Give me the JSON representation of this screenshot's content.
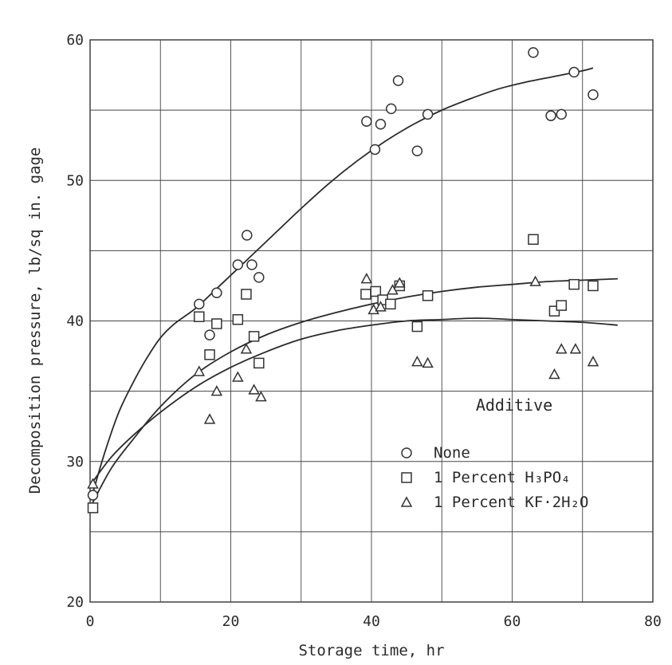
{
  "chart_data": {
    "type": "scatter",
    "xlabel": "Storage time, hr",
    "ylabel": "Decomposition pressure, lb/sq in. gage",
    "xlim": [
      0,
      80
    ],
    "ylim": [
      20,
      60
    ],
    "x_ticks": [
      "0",
      "20",
      "40",
      "60",
      "80"
    ],
    "y_ticks": [
      "20",
      "30",
      "40",
      "50",
      "60"
    ],
    "grid": true,
    "legend_position": "lower-right",
    "legend_title": "Additive",
    "series": [
      {
        "name": "None",
        "marker": "circle",
        "points": [
          [
            0.4,
            27.6
          ],
          [
            15.5,
            41.2
          ],
          [
            17.0,
            39.0
          ],
          [
            18.0,
            42.0
          ],
          [
            21.0,
            44.0
          ],
          [
            22.3,
            46.1
          ],
          [
            23.0,
            44.0
          ],
          [
            24.0,
            43.1
          ],
          [
            39.3,
            54.2
          ],
          [
            40.5,
            52.2
          ],
          [
            41.3,
            54.0
          ],
          [
            42.8,
            55.1
          ],
          [
            43.8,
            57.1
          ],
          [
            46.5,
            52.1
          ],
          [
            48.0,
            54.7
          ],
          [
            63.0,
            59.1
          ],
          [
            65.5,
            54.6
          ],
          [
            67.0,
            54.7
          ],
          [
            68.8,
            57.7
          ],
          [
            71.5,
            56.1
          ]
        ],
        "curve": [
          [
            0.3,
            27.6
          ],
          [
            2,
            30.5
          ],
          [
            4,
            33.4
          ],
          [
            6,
            35.5
          ],
          [
            8,
            37.3
          ],
          [
            10,
            38.8
          ],
          [
            12,
            39.8
          ],
          [
            15,
            40.9
          ],
          [
            18,
            42.3
          ],
          [
            22,
            44.2
          ],
          [
            26,
            46.1
          ],
          [
            30,
            48.0
          ],
          [
            34,
            49.8
          ],
          [
            38,
            51.4
          ],
          [
            42,
            52.8
          ],
          [
            46,
            54.0
          ],
          [
            50,
            55.0
          ],
          [
            54,
            55.8
          ],
          [
            58,
            56.5
          ],
          [
            62,
            57.0
          ],
          [
            66,
            57.4
          ],
          [
            70,
            57.8
          ],
          [
            71.5,
            58.0
          ]
        ]
      },
      {
        "name": "1 Percent H3PO4",
        "marker": "square",
        "points": [
          [
            0.4,
            26.7
          ],
          [
            15.5,
            40.3
          ],
          [
            17.0,
            37.6
          ],
          [
            18.0,
            39.8
          ],
          [
            21.0,
            40.1
          ],
          [
            22.2,
            41.9
          ],
          [
            23.3,
            38.9
          ],
          [
            24.0,
            37.0
          ],
          [
            39.2,
            41.9
          ],
          [
            40.6,
            42.1
          ],
          [
            41.6,
            41.5
          ],
          [
            42.7,
            41.2
          ],
          [
            44.0,
            42.5
          ],
          [
            46.5,
            39.6
          ],
          [
            48.0,
            41.8
          ],
          [
            63.0,
            45.8
          ],
          [
            66.0,
            40.7
          ],
          [
            67.0,
            41.1
          ],
          [
            68.8,
            42.6
          ],
          [
            71.5,
            42.5
          ]
        ],
        "curve": [
          [
            0.3,
            27.0
          ],
          [
            3,
            29.5
          ],
          [
            6,
            31.5
          ],
          [
            10,
            33.9
          ],
          [
            15,
            36.2
          ],
          [
            20,
            37.8
          ],
          [
            25,
            39.0
          ],
          [
            30,
            39.9
          ],
          [
            35,
            40.6
          ],
          [
            40,
            41.2
          ],
          [
            45,
            41.7
          ],
          [
            50,
            42.1
          ],
          [
            55,
            42.4
          ],
          [
            60,
            42.6
          ],
          [
            65,
            42.8
          ],
          [
            70,
            42.9
          ],
          [
            75,
            43.0
          ]
        ]
      },
      {
        "name": "1 Percent KF·2H2O",
        "marker": "triangle",
        "points": [
          [
            0.4,
            28.4
          ],
          [
            15.5,
            36.4
          ],
          [
            17.0,
            33.0
          ],
          [
            18.0,
            35.0
          ],
          [
            21.0,
            36.0
          ],
          [
            22.2,
            38.0
          ],
          [
            23.3,
            35.1
          ],
          [
            24.3,
            34.6
          ],
          [
            39.3,
            43.0
          ],
          [
            40.3,
            40.8
          ],
          [
            41.3,
            41.0
          ],
          [
            43.0,
            42.2
          ],
          [
            44.0,
            42.7
          ],
          [
            46.5,
            37.1
          ],
          [
            48.0,
            37.0
          ],
          [
            63.3,
            42.8
          ],
          [
            66.0,
            36.2
          ],
          [
            67.0,
            38.0
          ],
          [
            69.0,
            38.0
          ],
          [
            71.5,
            37.1
          ]
        ],
        "curve": [
          [
            0.3,
            28.5
          ],
          [
            3,
            30.3
          ],
          [
            6,
            31.8
          ],
          [
            10,
            33.5
          ],
          [
            15,
            35.3
          ],
          [
            20,
            36.7
          ],
          [
            25,
            37.8
          ],
          [
            30,
            38.7
          ],
          [
            35,
            39.3
          ],
          [
            40,
            39.7
          ],
          [
            45,
            40.0
          ],
          [
            50,
            40.1
          ],
          [
            55,
            40.2
          ],
          [
            60,
            40.1
          ],
          [
            65,
            40.0
          ],
          [
            70,
            39.9
          ],
          [
            75,
            39.7
          ]
        ]
      }
    ]
  },
  "legend": {
    "title": "Additive",
    "items": [
      {
        "marker": "circle",
        "text": "None"
      },
      {
        "marker": "square",
        "text": "1 Percent H₃PO₄"
      },
      {
        "marker": "triangle",
        "text": "1 Percent KF·2H₂O"
      }
    ]
  }
}
